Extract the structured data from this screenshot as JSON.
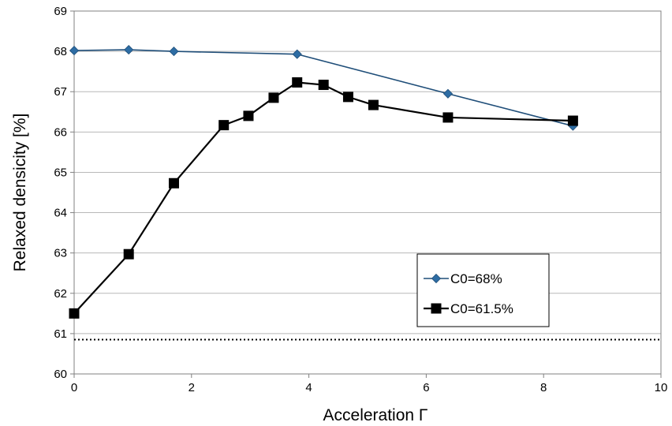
{
  "chart_data": {
    "type": "line",
    "xlabel": "Acceleration Γ",
    "ylabel": "Relaxed densicity [%]",
    "xlim": [
      0,
      10
    ],
    "ylim": [
      60,
      69
    ],
    "xticks": [
      0,
      2,
      4,
      6,
      8,
      10
    ],
    "yticks": [
      60,
      61,
      62,
      63,
      64,
      65,
      66,
      67,
      68,
      69
    ],
    "grid": "horizontal",
    "legend_position": "bottom-right",
    "reference_line": {
      "y": 60.85,
      "style": "dotted"
    },
    "series": [
      {
        "name": "C0=68%",
        "color": "#2e6da4",
        "marker": "diamond",
        "line_color": "#1f4e79",
        "x": [
          0,
          0.93,
          1.7,
          3.8,
          6.37,
          8.5
        ],
        "y": [
          68.02,
          68.04,
          68.0,
          67.93,
          66.95,
          66.15
        ]
      },
      {
        "name": "C0=61.5%",
        "color": "#000000",
        "marker": "square",
        "line_color": "#000000",
        "x": [
          0,
          0.93,
          1.7,
          2.55,
          2.97,
          3.4,
          3.8,
          4.25,
          4.67,
          5.1,
          6.37,
          8.5
        ],
        "y": [
          61.5,
          62.97,
          64.73,
          66.17,
          66.4,
          66.85,
          67.23,
          67.17,
          66.87,
          66.67,
          66.36,
          66.28
        ]
      }
    ]
  }
}
